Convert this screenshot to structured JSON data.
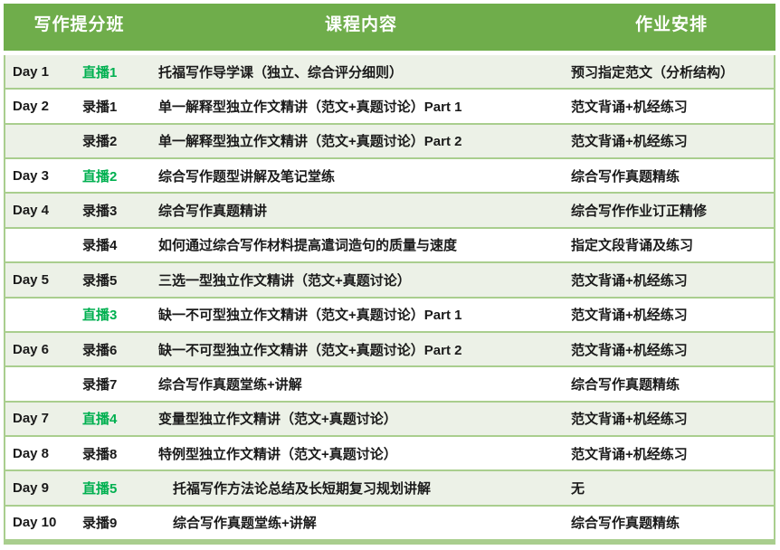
{
  "colors": {
    "header_bg": "#6FAD4B",
    "border_green": "#A9CE8E",
    "row_tint": "#ECF1E7",
    "live_green": "#00B050",
    "text_dark": "#1a1a1a"
  },
  "header": {
    "columns": [
      "写作提分班",
      "课程内容",
      "作业安排"
    ]
  },
  "rows": [
    {
      "day": "Day 1",
      "session": "直播1",
      "session_type": "live",
      "content": "托福写作导学课（独立、综合评分细则）",
      "homework": "预习指定范文（分析结构）",
      "indent": false
    },
    {
      "day": "Day 2",
      "session": "录播1",
      "session_type": "recorded",
      "content": "单一解释型独立作文精讲（范文+真题讨论）Part 1",
      "homework": "范文背诵+机经练习",
      "indent": false
    },
    {
      "day": "",
      "session": "录播2",
      "session_type": "recorded",
      "content": "单一解释型独立作文精讲（范文+真题讨论）Part 2",
      "homework": "范文背诵+机经练习",
      "indent": false
    },
    {
      "day": "Day 3",
      "session": "直播2",
      "session_type": "live",
      "content": "综合写作题型讲解及笔记堂练",
      "homework": "综合写作真题精练",
      "indent": false
    },
    {
      "day": "Day 4",
      "session": "录播3",
      "session_type": "recorded",
      "content": "综合写作真题精讲",
      "homework": "综合写作作业订正精修",
      "indent": false
    },
    {
      "day": "",
      "session": "录播4",
      "session_type": "recorded",
      "content": "如何通过综合写作材料提高遣词造句的质量与速度",
      "homework": "指定文段背诵及练习",
      "indent": false
    },
    {
      "day": "Day 5",
      "session": "录播5",
      "session_type": "recorded",
      "content": "三选一型独立作文精讲（范文+真题讨论）",
      "homework": "范文背诵+机经练习",
      "indent": false
    },
    {
      "day": "",
      "session": "直播3",
      "session_type": "live",
      "content": "缺一不可型独立作文精讲（范文+真题讨论）Part 1",
      "homework": "范文背诵+机经练习",
      "indent": false
    },
    {
      "day": "Day 6",
      "session": "录播6",
      "session_type": "recorded",
      "content": "缺一不可型独立作文精讲（范文+真题讨论）Part 2",
      "homework": "范文背诵+机经练习",
      "indent": false
    },
    {
      "day": "",
      "session": "录播7",
      "session_type": "recorded",
      "content": "综合写作真题堂练+讲解",
      "homework": "综合写作真题精练",
      "indent": false
    },
    {
      "day": "Day 7",
      "session": "直播4",
      "session_type": "live",
      "content": "变量型独立作文精讲（范文+真题讨论）",
      "homework": "范文背诵+机经练习",
      "indent": false
    },
    {
      "day": "Day 8",
      "session": "录播8",
      "session_type": "recorded",
      "content": "特例型独立作文精讲（范文+真题讨论）",
      "homework": "范文背诵+机经练习",
      "indent": false
    },
    {
      "day": "Day 9",
      "session": "直播5",
      "session_type": "live",
      "content": "托福写作方法论总结及长短期复习规划讲解",
      "homework": "无",
      "indent": true
    },
    {
      "day": "Day 10",
      "session": "录播9",
      "session_type": "recorded",
      "content": "综合写作真题堂练+讲解",
      "homework": "综合写作真题精练",
      "indent": true
    }
  ]
}
